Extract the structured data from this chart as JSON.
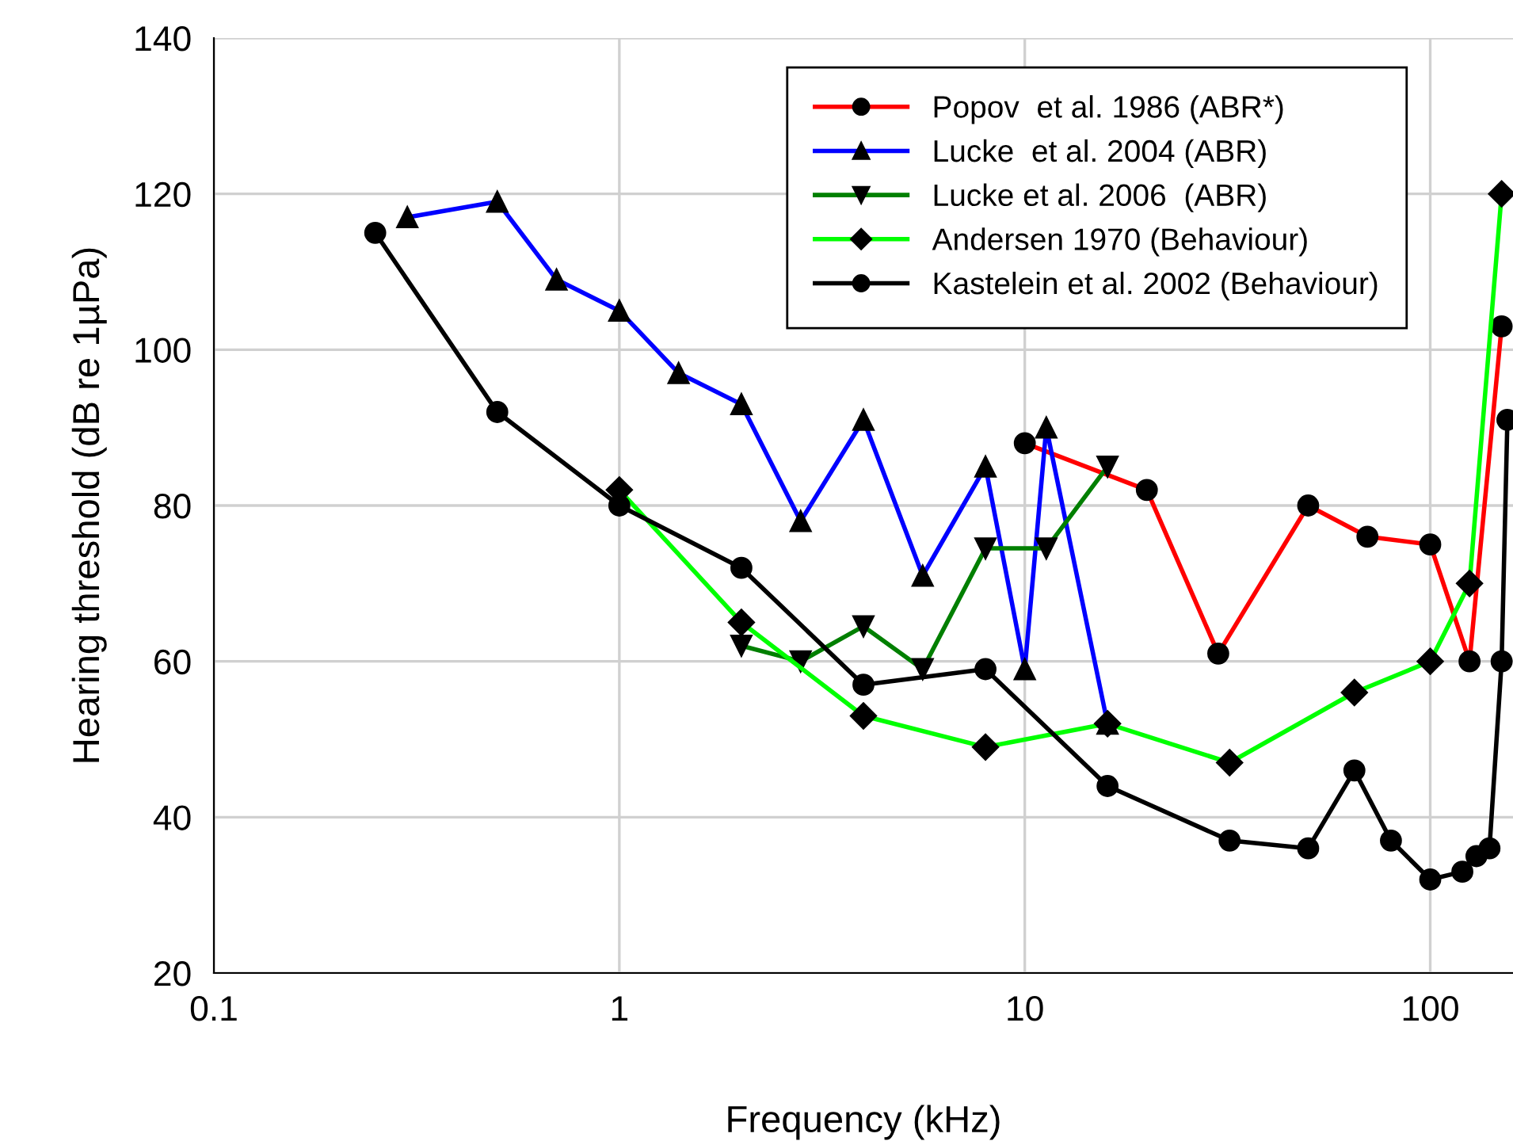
{
  "chart_data": {
    "type": "line",
    "xlabel": "Frequency (kHz)",
    "ylabel": "Hearing threshold (dB re 1µPa)",
    "log": "x",
    "xlim": [
      0.1,
      160
    ],
    "xticks": [
      0.1,
      1,
      10,
      100
    ],
    "ylim": [
      20,
      140
    ],
    "yticks": [
      20,
      40,
      60,
      80,
      100,
      120,
      140
    ],
    "grid": true,
    "legend": "top right",
    "series": [
      {
        "name": "Popov  et al. 1986 (ABR*)",
        "color": "#ff0000",
        "marker": "circle",
        "x": [
          10,
          20,
          30,
          50,
          70,
          100,
          125,
          150
        ],
        "values": [
          88,
          82,
          61,
          80,
          76,
          75,
          60,
          103
        ]
      },
      {
        "name": "Lucke  et al. 2004 (ABR)",
        "color": "#0000ff",
        "marker": "triangle",
        "x": [
          0.3,
          0.5,
          0.7,
          1,
          1.4,
          2,
          2.8,
          4,
          5.6,
          8,
          10,
          11.3,
          16
        ],
        "values": [
          117,
          119,
          109,
          105,
          97,
          93,
          78,
          91,
          71,
          85,
          59,
          90,
          52
        ]
      },
      {
        "name": "Lucke et al. 2006  (ABR)",
        "color": "#007f00",
        "marker": "triangle_down",
        "x": [
          2,
          2.8,
          4,
          5.6,
          8,
          11.3,
          16
        ],
        "values": [
          62,
          60,
          64.5,
          59,
          74.5,
          74.5,
          85
        ]
      },
      {
        "name": "Andersen 1970 (Behaviour)",
        "color": "#00ff00",
        "marker": "diamond",
        "x": [
          1,
          2,
          4,
          8,
          16,
          32,
          65,
          100,
          125,
          150
        ],
        "values": [
          82,
          65,
          53,
          49,
          52,
          47,
          56,
          60,
          70,
          120
        ]
      },
      {
        "name": "Kastelein et al. 2002 (Behaviour)",
        "color": "#000000",
        "marker": "circle",
        "x": [
          0.25,
          0.5,
          1,
          2,
          4,
          8,
          16,
          32,
          50,
          65,
          80,
          100,
          120,
          130,
          140,
          150,
          155
        ],
        "values": [
          115,
          92,
          80,
          72,
          57,
          59,
          44,
          37,
          36,
          46,
          37,
          32,
          33,
          35,
          36,
          60,
          91
        ]
      }
    ]
  }
}
